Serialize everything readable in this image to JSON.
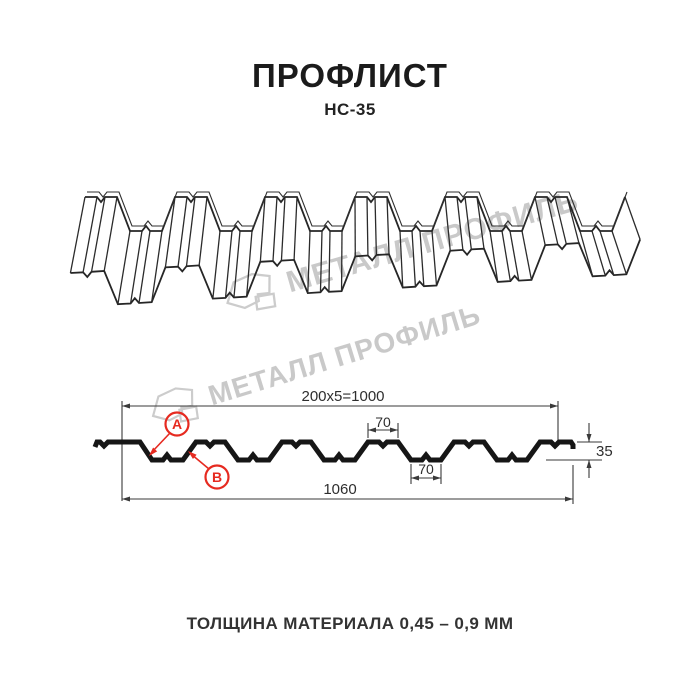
{
  "page": {
    "title": "ПРОФЛИСТ",
    "subtitle": "НС-35",
    "footer": "ТОЛЩИНА МАТЕРИАЛА 0,45 – 0,9 ММ"
  },
  "watermark": {
    "text": "МЕТАЛЛ ПРОФИЛЬ"
  },
  "section": {
    "dim_useful_width": "200x5=1000",
    "dim_crest_width": "70",
    "dim_valley_width": "70",
    "dim_height": "35",
    "dim_overall_width": "1060",
    "marker_a": "А",
    "marker_b": "В"
  },
  "colors": {
    "accent_red": "#e62a20",
    "line_black": "#1c1c1c",
    "dim_gray": "#3a3a3a",
    "watermark_gray": "#c9c9c9"
  }
}
